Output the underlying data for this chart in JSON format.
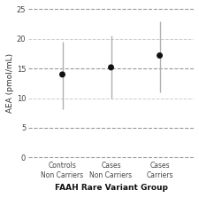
{
  "groups": [
    "Controls\nNon Carriers",
    "Cases\nNon Carriers",
    "Cases\nCarriers"
  ],
  "means": [
    14.0,
    15.2,
    17.2
  ],
  "lower_err": [
    5.8,
    5.2,
    6.2
  ],
  "upper_err": [
    5.5,
    5.3,
    5.8
  ],
  "x_positions": [
    1,
    2,
    3
  ],
  "ylim": [
    -0.3,
    25.5
  ],
  "yticks": [
    0,
    5,
    10,
    15,
    20,
    25
  ],
  "ylabel": "AEA (pmol/mL)",
  "xlabel": "FAAH Rare Variant Group",
  "marker_color": "#111111",
  "marker_size": 5,
  "line_color": "#b0b0b0",
  "line_width": 1.0,
  "grid_color_light": "#cccccc",
  "grid_color_dark": "#999999",
  "grid_dark_values": [
    0,
    5,
    15,
    25
  ],
  "background_color": "#ffffff",
  "xlabel_fontsize": 6.5,
  "ylabel_fontsize": 6.5,
  "tick_fontsize": 6.0,
  "xtick_fontsize": 5.5
}
